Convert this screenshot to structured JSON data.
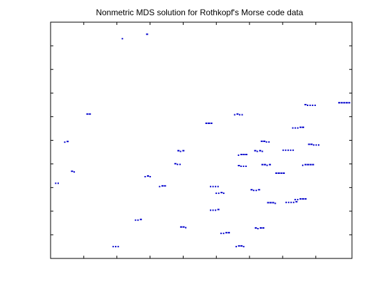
{
  "chart_data": {
    "type": "scatter",
    "title": "Nonmetric MDS solution for Rothkopf's Morse code data",
    "xlabel": "",
    "ylabel": "",
    "xlim": [
      0,
      100
    ],
    "ylim": [
      0,
      100
    ],
    "grid": false,
    "marker_color": "#0000cc",
    "tick_labels_shown": false,
    "points": [
      {
        "x": 2.3,
        "y": 32.1,
        "label": "··"
      },
      {
        "x": 5.3,
        "y": 49.5,
        "label": "·-"
      },
      {
        "x": 7.6,
        "y": 36.9,
        "label": "-·"
      },
      {
        "x": 12.7,
        "y": 61.1,
        "label": "--"
      },
      {
        "x": 21.8,
        "y": 5.3,
        "label": "···"
      },
      {
        "x": 24.0,
        "y": 93.3,
        "label": "·"
      },
      {
        "x": 29.2,
        "y": 16.5,
        "label": "··-"
      },
      {
        "x": 32.1,
        "y": 94.9,
        "label": "-"
      },
      {
        "x": 32.4,
        "y": 34.9,
        "label": "·-·"
      },
      {
        "x": 37.2,
        "y": 30.7,
        "label": "·--"
      },
      {
        "x": 42.3,
        "y": 40.1,
        "label": "-··"
      },
      {
        "x": 43.3,
        "y": 45.6,
        "label": "-·-"
      },
      {
        "x": 44.2,
        "y": 13.3,
        "label": "--·"
      },
      {
        "x": 52.6,
        "y": 57.2,
        "label": "---"
      },
      {
        "x": 54.5,
        "y": 30.7,
        "label": "····"
      },
      {
        "x": 54.5,
        "y": 20.7,
        "label": "···-"
      },
      {
        "x": 56.4,
        "y": 27.9,
        "label": "··-·"
      },
      {
        "x": 58.0,
        "y": 10.9,
        "label": "··--"
      },
      {
        "x": 62.5,
        "y": 61.1,
        "label": "·-··"
      },
      {
        "x": 63.0,
        "y": 5.3,
        "label": "·--·"
      },
      {
        "x": 63.8,
        "y": 44.0,
        "label": "·---"
      },
      {
        "x": 63.8,
        "y": 39.3,
        "label": "-···"
      },
      {
        "x": 68.0,
        "y": 29.1,
        "label": "-··-"
      },
      {
        "x": 69.2,
        "y": 45.6,
        "label": "-·-·"
      },
      {
        "x": 69.4,
        "y": 12.9,
        "label": "-·--"
      },
      {
        "x": 71.4,
        "y": 49.6,
        "label": "--··"
      },
      {
        "x": 71.6,
        "y": 39.7,
        "label": "--·-"
      },
      {
        "x": 73.5,
        "y": 23.6,
        "label": "---·"
      },
      {
        "x": 76.2,
        "y": 36.1,
        "label": "----"
      },
      {
        "x": 79.0,
        "y": 46.1,
        "label": "·····"
      },
      {
        "x": 80.0,
        "y": 24.0,
        "label": "····-"
      },
      {
        "x": 82.2,
        "y": 55.5,
        "label": "···--"
      },
      {
        "x": 83.0,
        "y": 25.2,
        "label": "··---"
      },
      {
        "x": 85.5,
        "y": 39.7,
        "label": "·----"
      },
      {
        "x": 86.3,
        "y": 65.1,
        "label": "-····"
      },
      {
        "x": 87.5,
        "y": 48.3,
        "label": "--···"
      },
      {
        "x": 97.5,
        "y": 65.9,
        "label": "-----"
      }
    ]
  }
}
